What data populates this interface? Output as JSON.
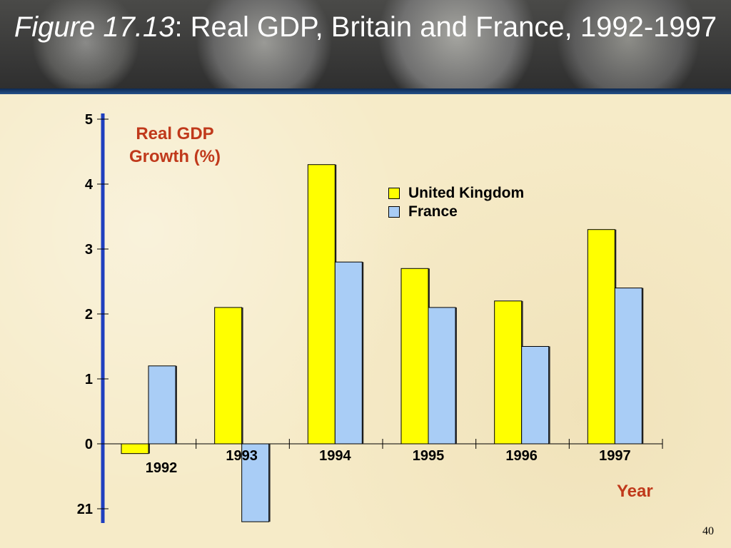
{
  "slide": {
    "title_italic": "Figure 17.13",
    "title_rest": ": Real GDP, Britain and France, 1992-1997",
    "page_number": "40"
  },
  "colors": {
    "uk": "#ffff00",
    "france": "#a9cdf6",
    "axis": "#1f3fbf",
    "label": "#c0391b"
  },
  "chart_data": {
    "type": "bar",
    "title": "Real GDP, Britain and France, 1992-1997",
    "xlabel": "Year",
    "ylabel": "Real GDP Growth (%)",
    "categories": [
      "1992",
      "1993",
      "1994",
      "1995",
      "1996",
      "1997"
    ],
    "series": [
      {
        "name": "United Kingdom",
        "values": [
          -0.15,
          2.1,
          4.3,
          2.7,
          2.2,
          3.3
        ]
      },
      {
        "name": "France",
        "values": [
          1.2,
          -1.2,
          2.8,
          2.1,
          1.5,
          2.4
        ]
      }
    ],
    "yticks": [
      "21",
      "0",
      "1",
      "2",
      "3",
      "4",
      "5"
    ],
    "ylim": [
      -1,
      5
    ],
    "grid": false,
    "legend": "upper-right"
  }
}
